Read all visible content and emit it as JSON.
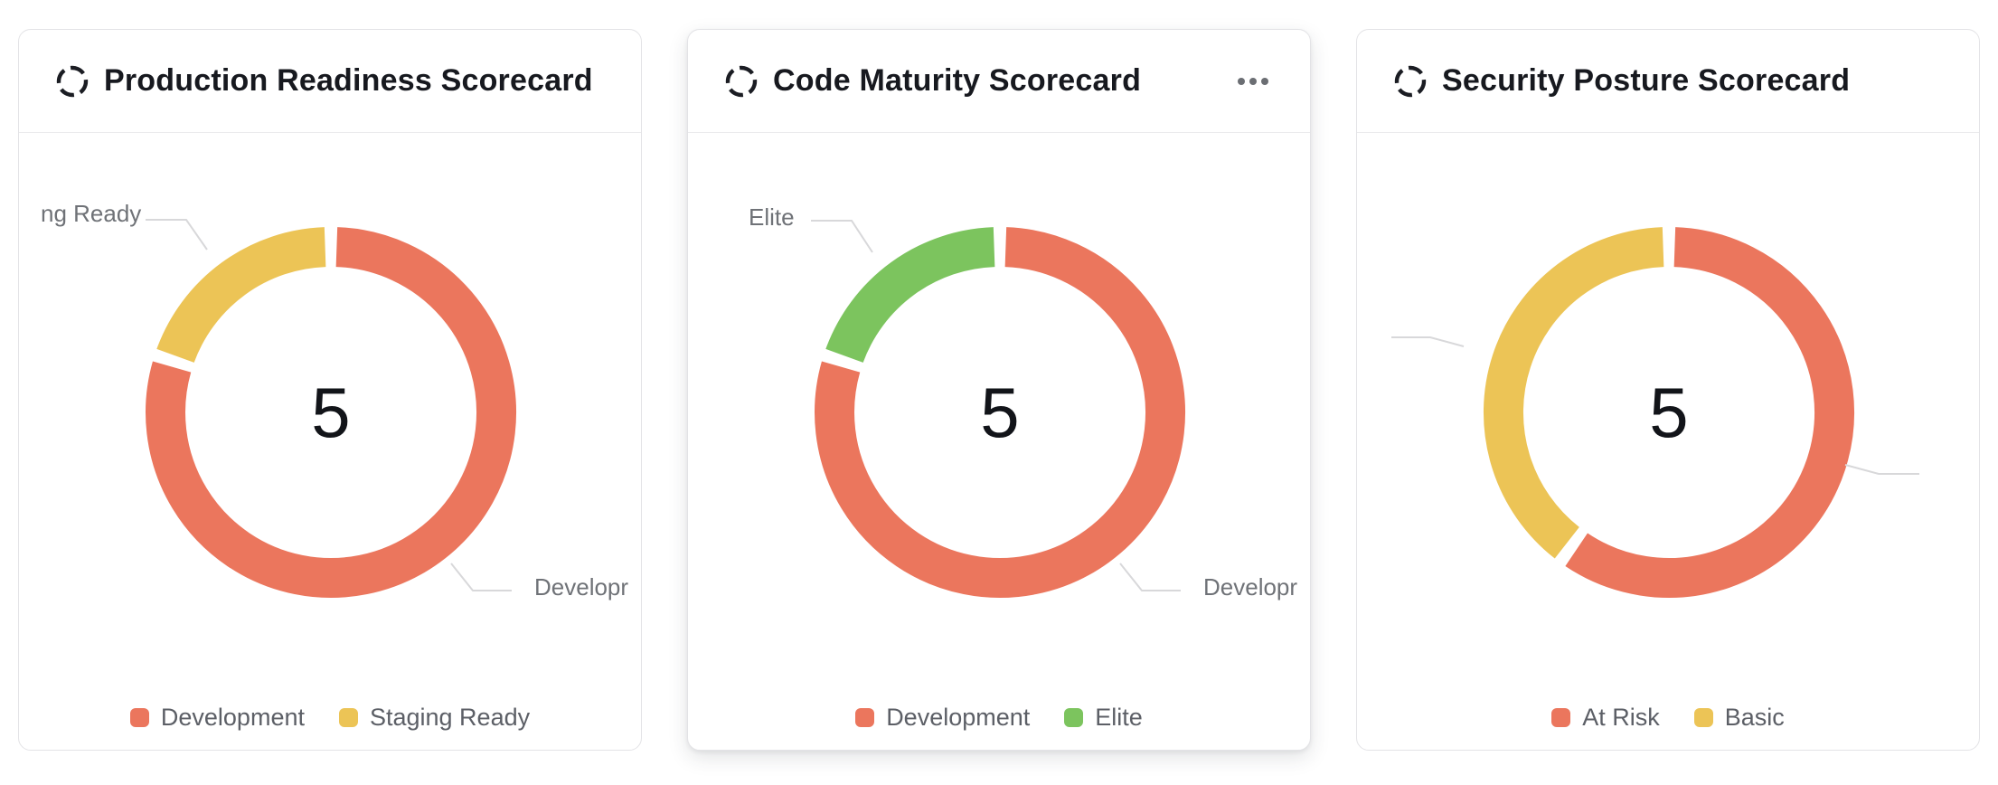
{
  "page": {
    "background_color": "#ffffff"
  },
  "cards": [
    {
      "title": "Production Readiness Scorecard",
      "icon": "dashed-ring-scorecard-icon",
      "has_menu": false
    },
    {
      "title": "Code Maturity Scorecard",
      "icon": "dashed-ring-scorecard-icon",
      "has_menu": true,
      "menu_icon": "ellipsis-icon"
    },
    {
      "title": "Security Posture Scorecard",
      "icon": "dashed-ring-scorecard-icon",
      "has_menu": false
    }
  ],
  "chart_data": [
    {
      "type": "pie",
      "subtype": "donut",
      "title": "Production Readiness Scorecard",
      "center_total": "5",
      "series": [
        {
          "name": "Development",
          "value": 4,
          "color": "#EB765D"
        },
        {
          "name": "Staging Ready",
          "value": 1,
          "color": "#ECC456"
        }
      ],
      "start_angle_deg": 90,
      "direction": "clockwise",
      "legend_position": "bottom",
      "callout_labels": {
        "left": "ng Ready",
        "right": "Developr"
      }
    },
    {
      "type": "pie",
      "subtype": "donut",
      "title": "Code Maturity Scorecard",
      "center_total": "5",
      "series": [
        {
          "name": "Development",
          "value": 4,
          "color": "#EB765D"
        },
        {
          "name": "Elite",
          "value": 1,
          "color": "#7CC45E"
        }
      ],
      "start_angle_deg": 90,
      "direction": "clockwise",
      "legend_position": "bottom",
      "callout_labels": {
        "left": "Elite",
        "right": "Developr"
      }
    },
    {
      "type": "pie",
      "subtype": "donut",
      "title": "Security Posture Scorecard",
      "center_total": "5",
      "series": [
        {
          "name": "At Risk",
          "value": 3,
          "color": "#EB765D"
        },
        {
          "name": "Basic",
          "value": 2,
          "color": "#ECC456"
        }
      ],
      "start_angle_deg": 90,
      "direction": "clockwise",
      "legend_position": "bottom",
      "callout_labels": {
        "left": "",
        "right": ""
      }
    }
  ]
}
